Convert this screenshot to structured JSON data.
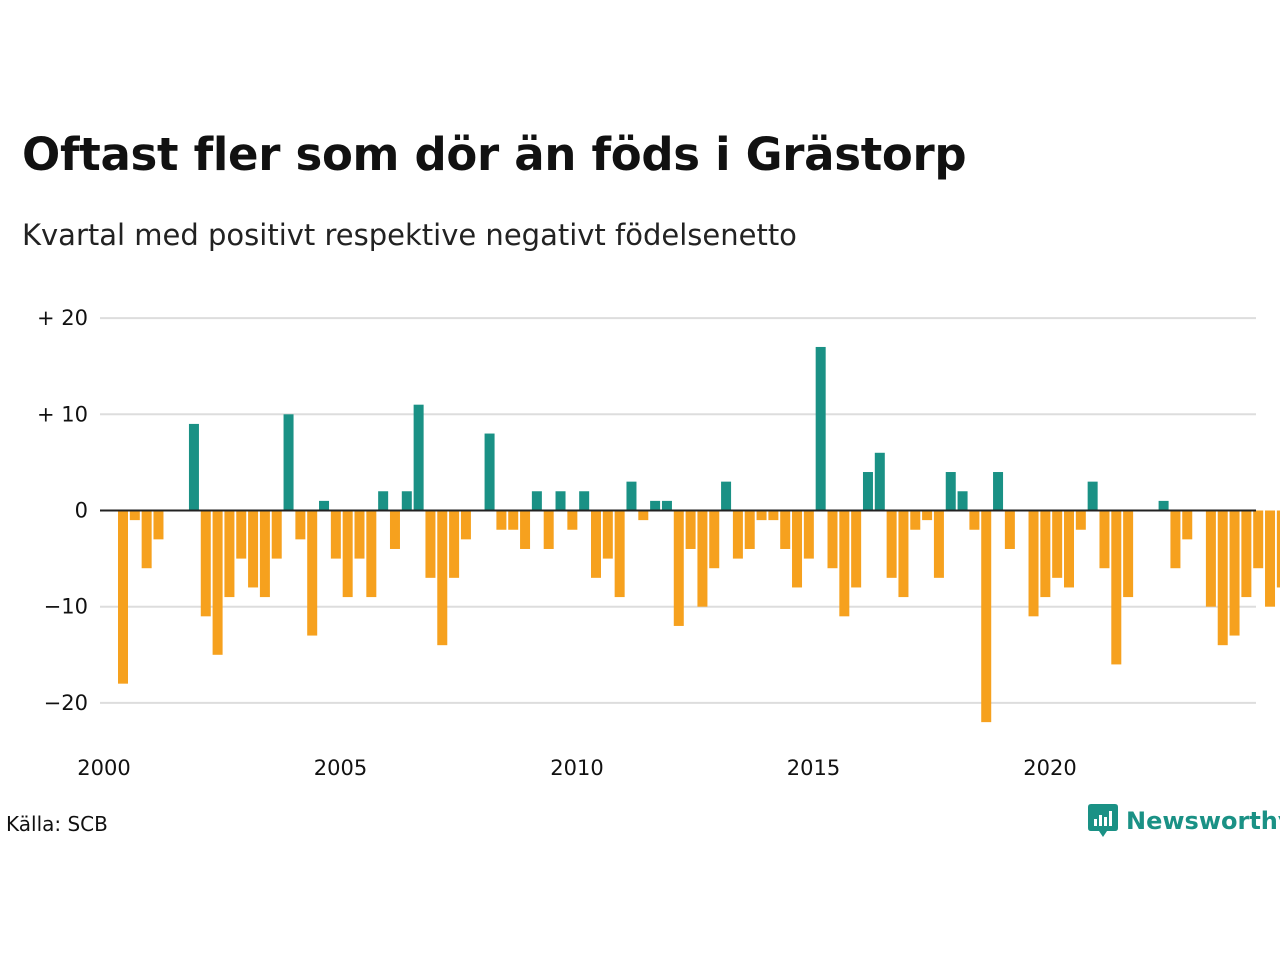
{
  "title": "Oftast fler som dör än föds i Grästorp",
  "subtitle": "Kvartal med positivt respektive negativt födelsenetto",
  "source": "Källa: SCB",
  "brand": {
    "name": "Newsworthy",
    "icon": "newsworthy-logo-icon"
  },
  "colors": {
    "positive": "#1a9185",
    "negative": "#f6a11e",
    "grid": "#dddddd",
    "zero_line": "#222222",
    "brand": "#1a9185"
  },
  "chart_data": {
    "type": "bar",
    "title": "Oftast fler som dör än föds i Grästorp",
    "subtitle": "Kvartal med positivt respektive negativt födelsenetto",
    "xlabel": "",
    "ylabel": "",
    "ylim": [
      -25,
      20
    ],
    "xlim": [
      2000,
      2024.5
    ],
    "grid": true,
    "legend": "none",
    "y_ticks": [
      {
        "value": 20,
        "label": "+ 20"
      },
      {
        "value": 10,
        "label": "+ 10"
      },
      {
        "value": 0,
        "label": "0"
      },
      {
        "value": -10,
        "label": "−10"
      },
      {
        "value": -20,
        "label": "−20"
      }
    ],
    "x_ticks": [
      {
        "value": 2000,
        "label": "2000"
      },
      {
        "value": 2005,
        "label": "2005"
      },
      {
        "value": 2010,
        "label": "2010"
      },
      {
        "value": 2015,
        "label": "2015"
      },
      {
        "value": 2020,
        "label": "2020"
      }
    ],
    "start_year": 2000,
    "start_quarter": 1,
    "values": [
      -18,
      -1,
      -6,
      -3,
      0,
      0,
      9,
      -11,
      -15,
      -9,
      -5,
      -8,
      -9,
      -5,
      10,
      -3,
      -13,
      1,
      -5,
      -9,
      -5,
      -9,
      2,
      -4,
      2,
      11,
      -7,
      -14,
      -7,
      -3,
      0,
      8,
      -2,
      -2,
      -4,
      2,
      -4,
      2,
      -2,
      2,
      -7,
      -5,
      -9,
      3,
      -1,
      1,
      1,
      -12,
      -4,
      -10,
      -6,
      3,
      -5,
      -4,
      -1,
      -1,
      -4,
      -8,
      -5,
      17,
      -6,
      -11,
      -8,
      4,
      6,
      -7,
      -9,
      -2,
      -1,
      -7,
      4,
      2,
      -2,
      -22,
      4,
      -4,
      0,
      -11,
      -9,
      -7,
      -8,
      -2,
      3,
      -6,
      -16,
      -9,
      0,
      0,
      1,
      -6,
      -3,
      0,
      -10,
      -14,
      -13,
      -9,
      -6,
      -10,
      -8
    ]
  }
}
